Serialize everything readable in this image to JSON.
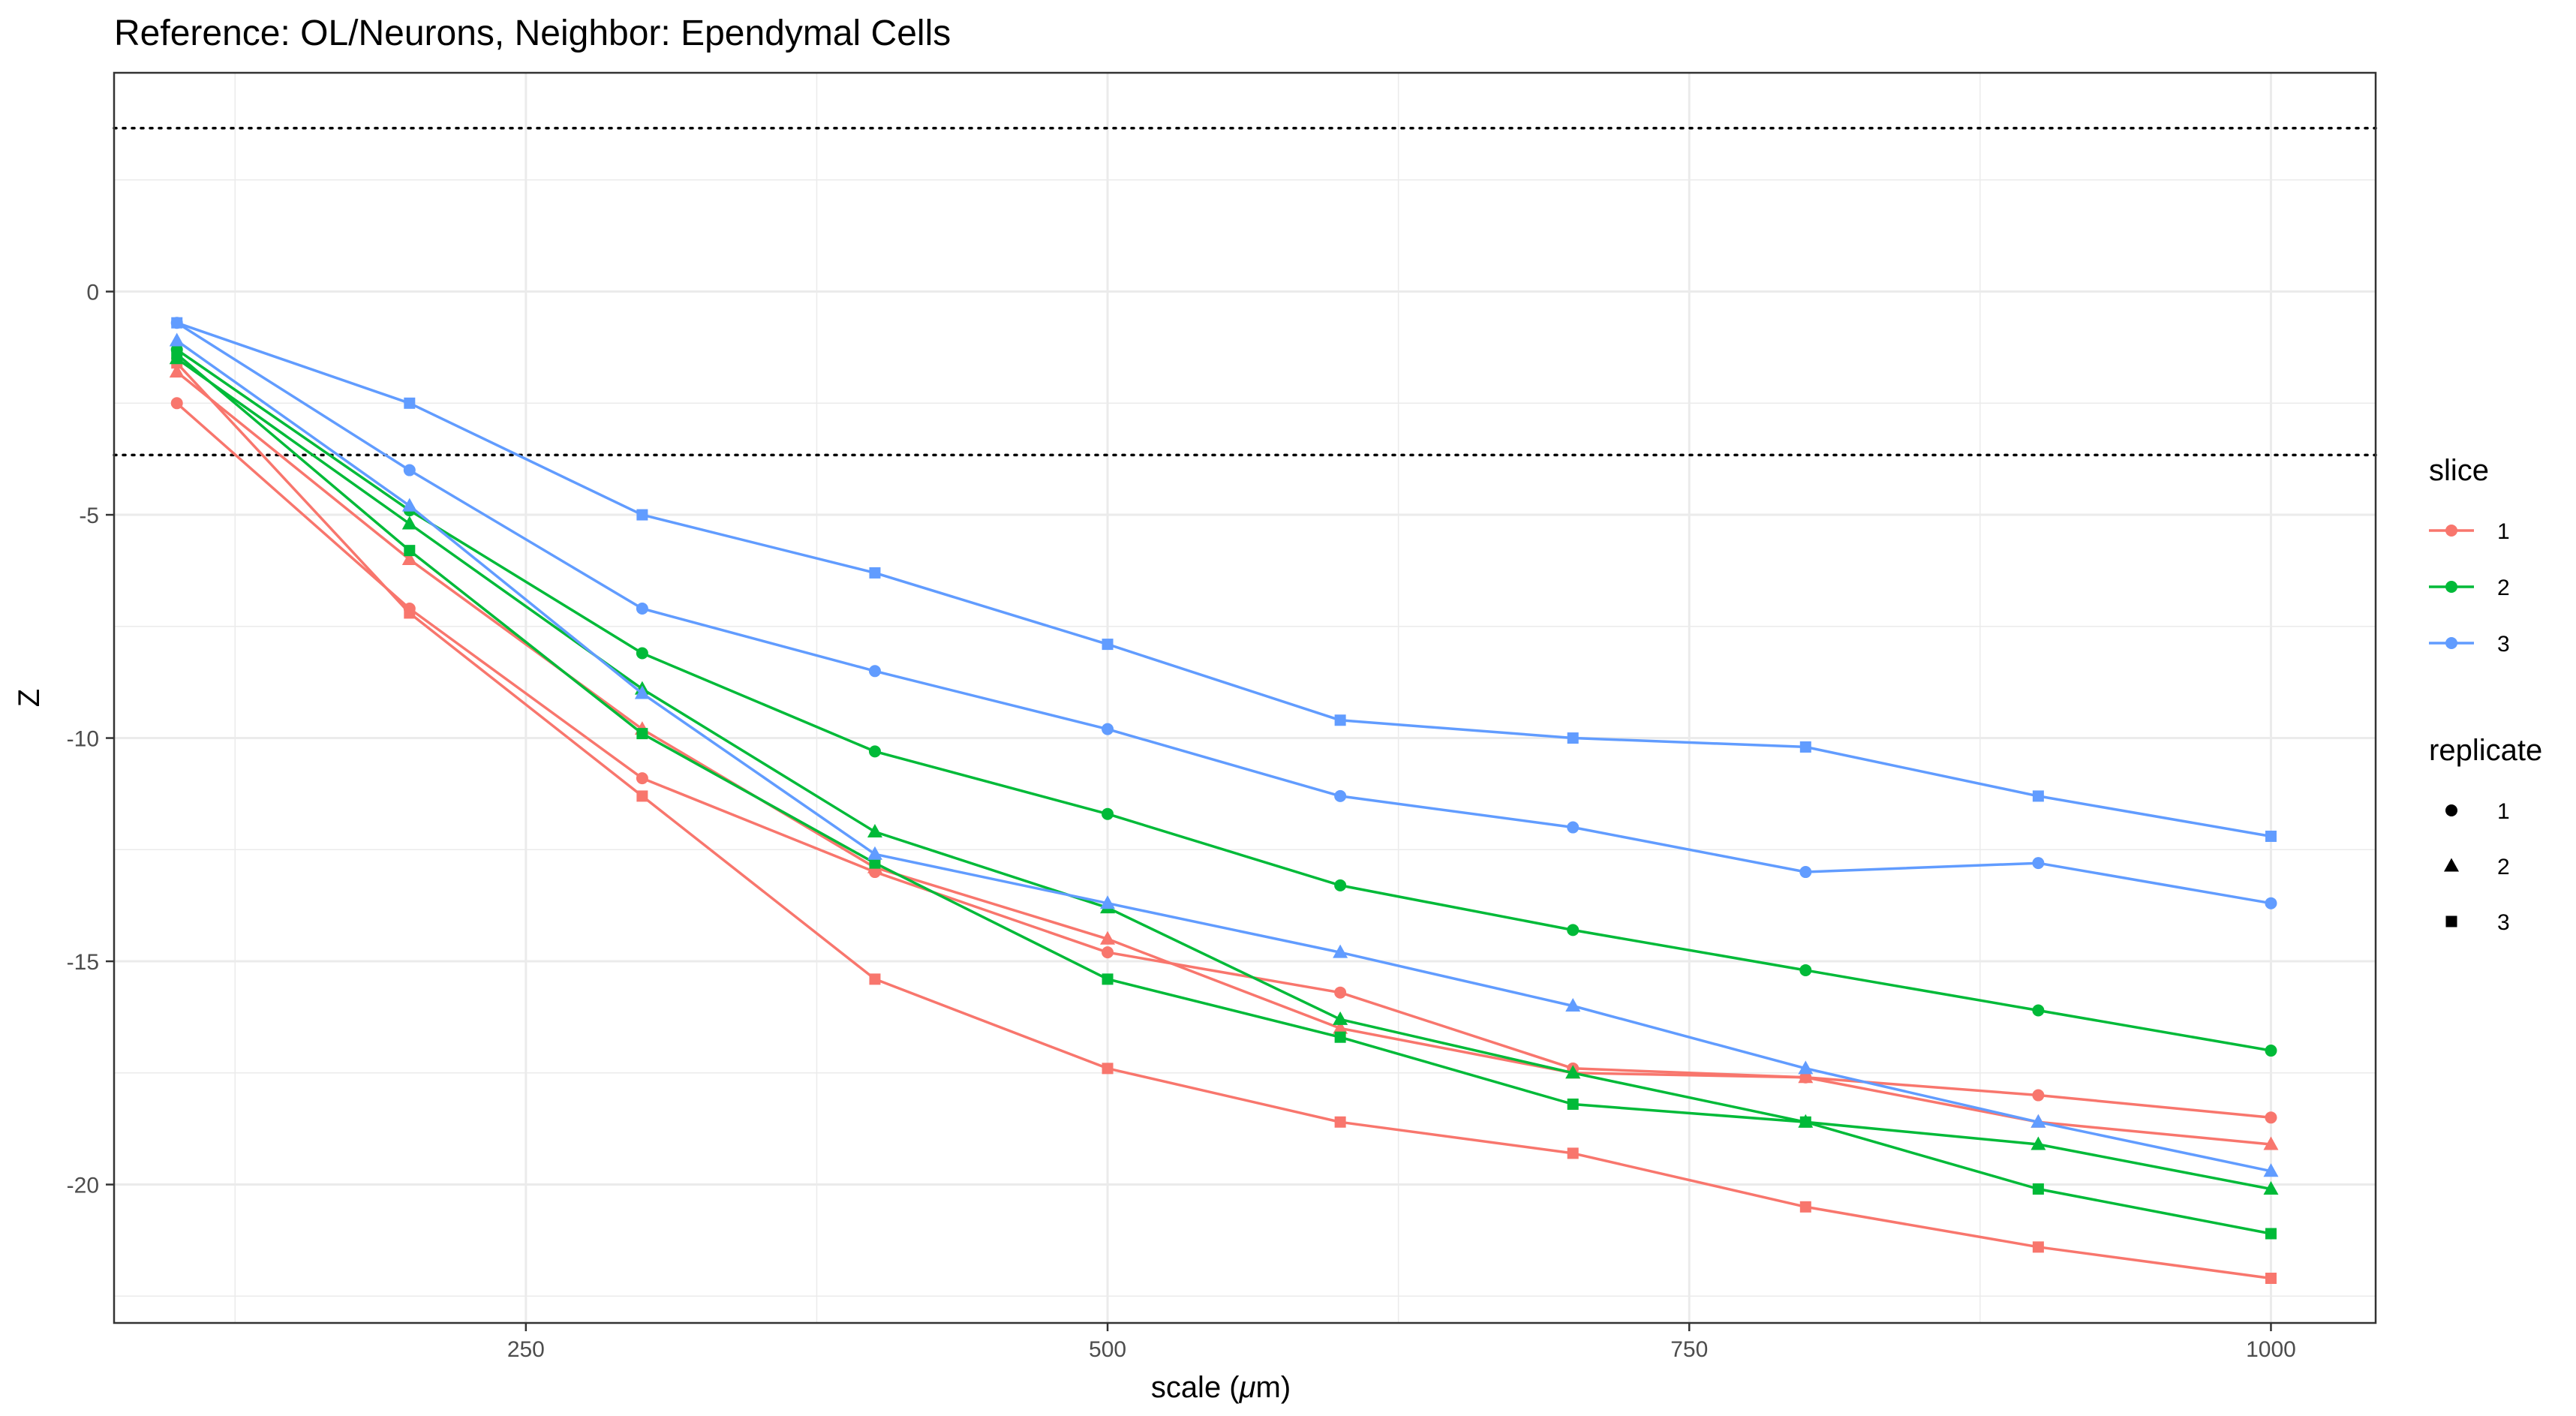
{
  "chart_data": {
    "type": "line",
    "title": "Reference: OL/Neurons, Neighbor: Ependymal Cells",
    "xlabel_main": "scale (",
    "xlabel_symbol": "μ",
    "xlabel_unit": "m)",
    "ylabel": "Z",
    "xlim": [
      73,
      1045
    ],
    "ylim": [
      -23.1,
      4.9
    ],
    "x_ticks": [
      250,
      500,
      750,
      1000
    ],
    "y_ticks": [
      0,
      -5,
      -10,
      -15,
      -20
    ],
    "reference_lines": [
      3.66,
      -3.66
    ],
    "x": [
      100,
      200,
      300,
      400,
      500,
      600,
      700,
      800,
      900,
      1000
    ],
    "grid": true,
    "slice_colors": {
      "1": "#F8766D",
      "2": "#00BA38",
      "3": "#619CFF"
    },
    "series": [
      {
        "slice": "1",
        "replicate": "1",
        "values": [
          -2.5,
          -7.1,
          -10.9,
          -13.0,
          -14.8,
          -15.7,
          -17.4,
          -17.6,
          -18.0,
          -18.5
        ]
      },
      {
        "slice": "1",
        "replicate": "2",
        "values": [
          -1.8,
          -6.0,
          -9.8,
          -12.9,
          -14.5,
          -16.5,
          -17.5,
          -17.6,
          -18.6,
          -19.1
        ]
      },
      {
        "slice": "1",
        "replicate": "3",
        "values": [
          -1.6,
          -7.2,
          -11.3,
          -15.4,
          -17.4,
          -18.6,
          -19.3,
          -20.5,
          -21.4,
          -22.1
        ]
      },
      {
        "slice": "2",
        "replicate": "1",
        "values": [
          -1.3,
          -4.9,
          -8.1,
          -10.3,
          -11.7,
          -13.3,
          -14.3,
          -15.2,
          -16.1,
          -17.0
        ]
      },
      {
        "slice": "2",
        "replicate": "2",
        "values": [
          -1.5,
          -5.2,
          -8.9,
          -12.1,
          -13.8,
          -16.3,
          -17.5,
          -18.6,
          -19.1,
          -20.1
        ]
      },
      {
        "slice": "2",
        "replicate": "3",
        "values": [
          -1.4,
          -5.8,
          -9.9,
          -12.8,
          -15.4,
          -16.7,
          -18.2,
          -18.6,
          -20.1,
          -21.1
        ]
      },
      {
        "slice": "3",
        "replicate": "1",
        "values": [
          -0.7,
          -4.0,
          -7.1,
          -8.5,
          -9.8,
          -11.3,
          -12.0,
          -13.0,
          -12.8,
          -13.7
        ]
      },
      {
        "slice": "3",
        "replicate": "2",
        "values": [
          -1.1,
          -4.8,
          -9.0,
          -12.6,
          -13.7,
          -14.8,
          -16.0,
          -17.4,
          -18.6,
          -19.7
        ]
      },
      {
        "slice": "3",
        "replicate": "3",
        "values": [
          -0.7,
          -2.5,
          -5.0,
          -6.3,
          -7.9,
          -9.6,
          -10.0,
          -10.2,
          -11.3,
          -12.2
        ]
      }
    ],
    "legend": {
      "placement": "right",
      "slice_title": "slice",
      "slice_items": [
        {
          "label": "1",
          "color": "#F8766D"
        },
        {
          "label": "2",
          "color": "#00BA38"
        },
        {
          "label": "3",
          "color": "#619CFF"
        }
      ],
      "replicate_title": "replicate",
      "replicate_items": [
        {
          "label": "1",
          "shape": "circle"
        },
        {
          "label": "2",
          "shape": "triangle"
        },
        {
          "label": "3",
          "shape": "square"
        }
      ]
    }
  }
}
